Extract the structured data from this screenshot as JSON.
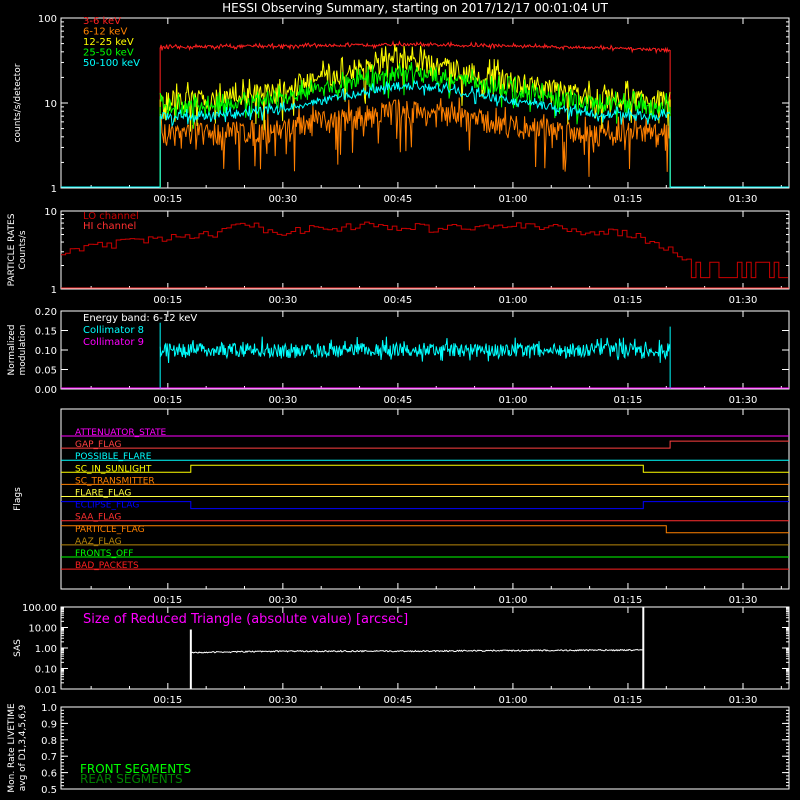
{
  "title": "HESSI Observing Summary, starting on 2017/12/17 00:01:04 UT",
  "time_ticks": [
    "00:15",
    "00:30",
    "00:45",
    "01:00",
    "01:15",
    "01:30"
  ],
  "colors": {
    "3-6": "#ff2020",
    "6-12": "#ff8000",
    "12-25": "#ffff00",
    "25-50": "#00ff00",
    "50-100": "#00ffff",
    "lo": "#cc0000",
    "hi": "#ff3030",
    "coll8": "#00ffff",
    "coll9": "#ff00ff",
    "sas": "#ffffff",
    "front": "#00ff00",
    "rear": "#008000"
  },
  "chart_data": [
    {
      "type": "line",
      "name": "count-rates",
      "ylabel": "counts/s/detector",
      "ylog": true,
      "ylim": [
        1,
        100
      ],
      "y_ticks": [
        "1",
        "10",
        "100"
      ],
      "xlim_minutes": [
        1.07,
        96
      ],
      "data_window_minutes": [
        14.0,
        80.5
      ],
      "legend_position": "top-left",
      "series": [
        {
          "name": "3-6 keV",
          "color_key": "3-6",
          "x": [
            14,
            20,
            30,
            40,
            45,
            50,
            60,
            70,
            80.5
          ],
          "y": [
            45,
            46,
            47,
            48,
            49,
            48,
            47,
            45,
            42
          ]
        },
        {
          "name": "6-12 keV",
          "color_key": "6-12",
          "x": [
            14,
            20,
            30,
            40,
            45,
            50,
            60,
            70,
            80.5
          ],
          "y": [
            4.5,
            4.5,
            5,
            7,
            8.5,
            7.5,
            5.5,
            4.5,
            4.5
          ]
        },
        {
          "name": "12-25 keV",
          "color_key": "12-25",
          "x": [
            14,
            20,
            30,
            40,
            45,
            50,
            60,
            70,
            80.5
          ],
          "y": [
            11,
            11,
            14,
            25,
            32,
            28,
            18,
            12,
            11
          ]
        },
        {
          "name": "25-50 keV",
          "color_key": "25-50",
          "x": [
            14,
            20,
            30,
            40,
            45,
            50,
            60,
            70,
            80.5
          ],
          "y": [
            9,
            9,
            11,
            18,
            23,
            21,
            14,
            10,
            9
          ]
        },
        {
          "name": "50-100 keV",
          "color_key": "50-100",
          "x": [
            14,
            20,
            30,
            40,
            45,
            50,
            60,
            70,
            80.5
          ],
          "y": [
            7,
            7,
            8.5,
            13,
            16,
            15,
            10.5,
            7.5,
            7
          ]
        }
      ]
    },
    {
      "type": "line",
      "name": "particle-rates",
      "ylabel": [
        "PARTICLE RATES",
        "Counts/s"
      ],
      "ylog": true,
      "ylim": [
        1,
        10
      ],
      "y_ticks": [
        "1",
        "10"
      ],
      "legend_position": "top-left",
      "series": [
        {
          "name": "LO channel",
          "color_key": "lo",
          "step": true,
          "x": [
            1.07,
            10,
            20,
            25,
            30,
            40,
            50,
            60,
            70,
            76,
            78,
            80,
            82,
            85,
            96
          ],
          "y": [
            3,
            4,
            5,
            6.5,
            5.5,
            6.5,
            6,
            6.5,
            5.5,
            5,
            4,
            3.5,
            2.2,
            2,
            2
          ]
        },
        {
          "name": "HI channel",
          "color_key": "hi",
          "step": false,
          "x": [
            1.07,
            96
          ],
          "y": [
            1,
            1
          ]
        }
      ]
    },
    {
      "type": "line",
      "name": "modulation",
      "ylabel": [
        "Normalized",
        "modulation"
      ],
      "ylim": [
        0.0,
        0.2
      ],
      "y_ticks": [
        "0.00",
        "0.05",
        "0.10",
        "0.15",
        "0.20"
      ],
      "annotation": "Energy band: 6-12 keV",
      "legend_position": "top-left",
      "series": [
        {
          "name": "Collimator 8",
          "color_key": "coll8",
          "x": [
            14,
            80.5
          ],
          "y": [
            0.1,
            0.1
          ]
        },
        {
          "name": "Collimator 9",
          "color_key": "coll9",
          "x": [
            1.07,
            96
          ],
          "y": [
            0.0,
            0.0
          ]
        }
      ]
    },
    {
      "type": "line",
      "name": "flags",
      "ylabel": "Flags",
      "series": [
        {
          "name": "ATTENUATOR_STATE",
          "color": "#ff00ff",
          "x": [
            1.07,
            96
          ],
          "y": [
            0,
            0
          ]
        },
        {
          "name": "GAP_FLAG",
          "color": "#ff4040",
          "x": [
            1.07,
            80.5,
            80.5,
            96
          ],
          "y": [
            0,
            0,
            1,
            1
          ]
        },
        {
          "name": "POSSIBLE_FLARE",
          "color": "#00ffff",
          "x": [
            1.07,
            96
          ],
          "y": [
            0,
            0
          ]
        },
        {
          "name": "SC_IN_SUNLIGHT",
          "color": "#ffff00",
          "x": [
            1.07,
            18,
            18,
            77,
            77,
            96
          ],
          "y": [
            0,
            0,
            1,
            1,
            0,
            0
          ]
        },
        {
          "name": "SC_TRANSMITTER",
          "color": "#ff8000",
          "x": [
            1.07,
            96
          ],
          "y": [
            0,
            0
          ]
        },
        {
          "name": "FLARE_FLAG",
          "color": "#ffff40",
          "x": [
            1.07,
            96
          ],
          "y": [
            0,
            0
          ]
        },
        {
          "name": "ECLIPSE_FLAG",
          "color": "#0000ff",
          "x": [
            1.07,
            18,
            18,
            77,
            77,
            96
          ],
          "y": [
            1,
            1,
            0,
            0,
            1,
            1
          ]
        },
        {
          "name": "SAA_FLAG",
          "color": "#ff3030",
          "x": [
            1.07,
            96
          ],
          "y": [
            0,
            0
          ]
        },
        {
          "name": "PARTICLE_FLAG",
          "color": "#ff8000",
          "x": [
            1.07,
            80,
            80,
            96
          ],
          "y": [
            1,
            1,
            0,
            0
          ]
        },
        {
          "name": "AAZ_FLAG",
          "color": "#b8860b",
          "x": [
            1.07,
            96
          ],
          "y": [
            0,
            0
          ]
        },
        {
          "name": "FRONTS_OFF",
          "color": "#00ff00",
          "x": [
            1.07,
            96
          ],
          "y": [
            0,
            0
          ]
        },
        {
          "name": "BAD_PACKETS",
          "color": "#ff2020",
          "x": [
            1.07,
            96
          ],
          "y": [
            0,
            0
          ]
        }
      ]
    },
    {
      "type": "line",
      "name": "sas",
      "ylabel": "SAS",
      "ylog": true,
      "ylim": [
        0.01,
        100
      ],
      "y_ticks": [
        "0.01",
        "0.10",
        "1.00",
        "10.00",
        "100.00"
      ],
      "annotation": "Size of Reduced Triangle (absolute value) [arcsec]",
      "series": [
        {
          "name": "",
          "color_key": "sas",
          "x": [
            18,
            30,
            45,
            60,
            77
          ],
          "y": [
            0.6,
            0.7,
            0.7,
            0.75,
            0.8
          ]
        }
      ]
    },
    {
      "type": "line",
      "name": "livetime",
      "ylabel": [
        "Mon. Rate LIVETIME",
        "avg of D1,3,4,5,6,9"
      ],
      "ylim": [
        0.5,
        1.0
      ],
      "y_ticks": [
        "0.5",
        "0.6",
        "0.7",
        "0.8",
        "0.9",
        "1.0"
      ],
      "legend_position": "bottom-left",
      "series": [
        {
          "name": "FRONT SEGMENTS",
          "color_key": "front",
          "x": [],
          "y": []
        },
        {
          "name": "REAR SEGMENTS",
          "color_key": "rear",
          "x": [],
          "y": []
        }
      ]
    }
  ]
}
